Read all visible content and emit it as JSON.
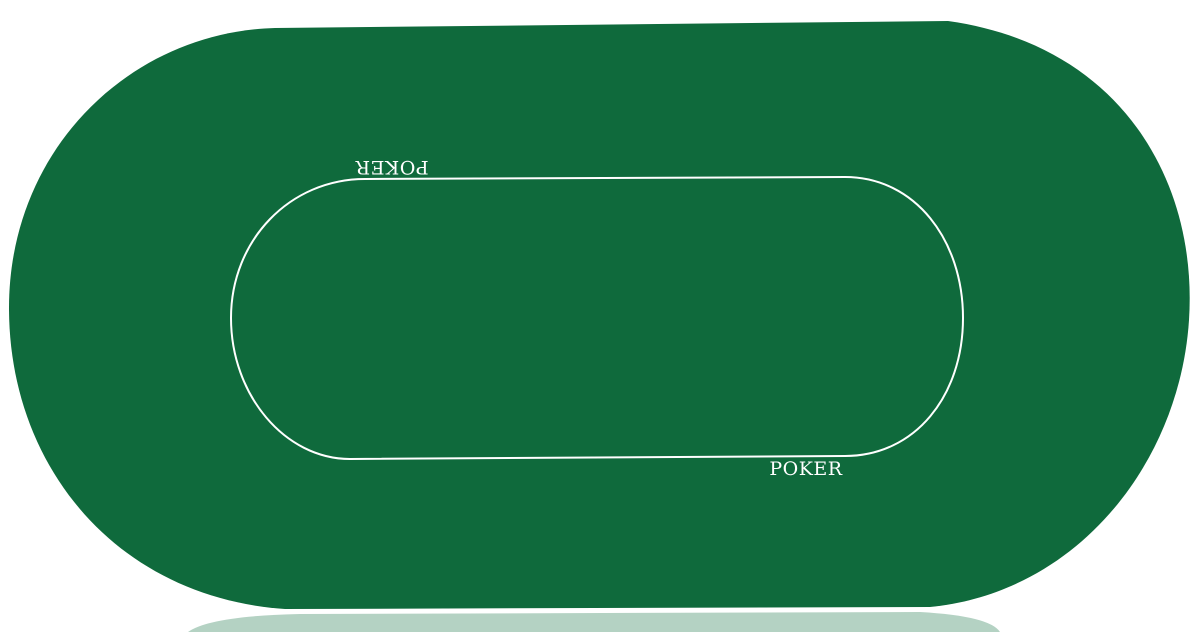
{
  "table": {
    "felt_color": "#0f6a3c",
    "line_color": "#ffffff",
    "reflection_color": "#b4d2c3",
    "background_color": "#ffffff"
  },
  "labels": {
    "top_text": "POKER",
    "bottom_text": "POKER"
  }
}
